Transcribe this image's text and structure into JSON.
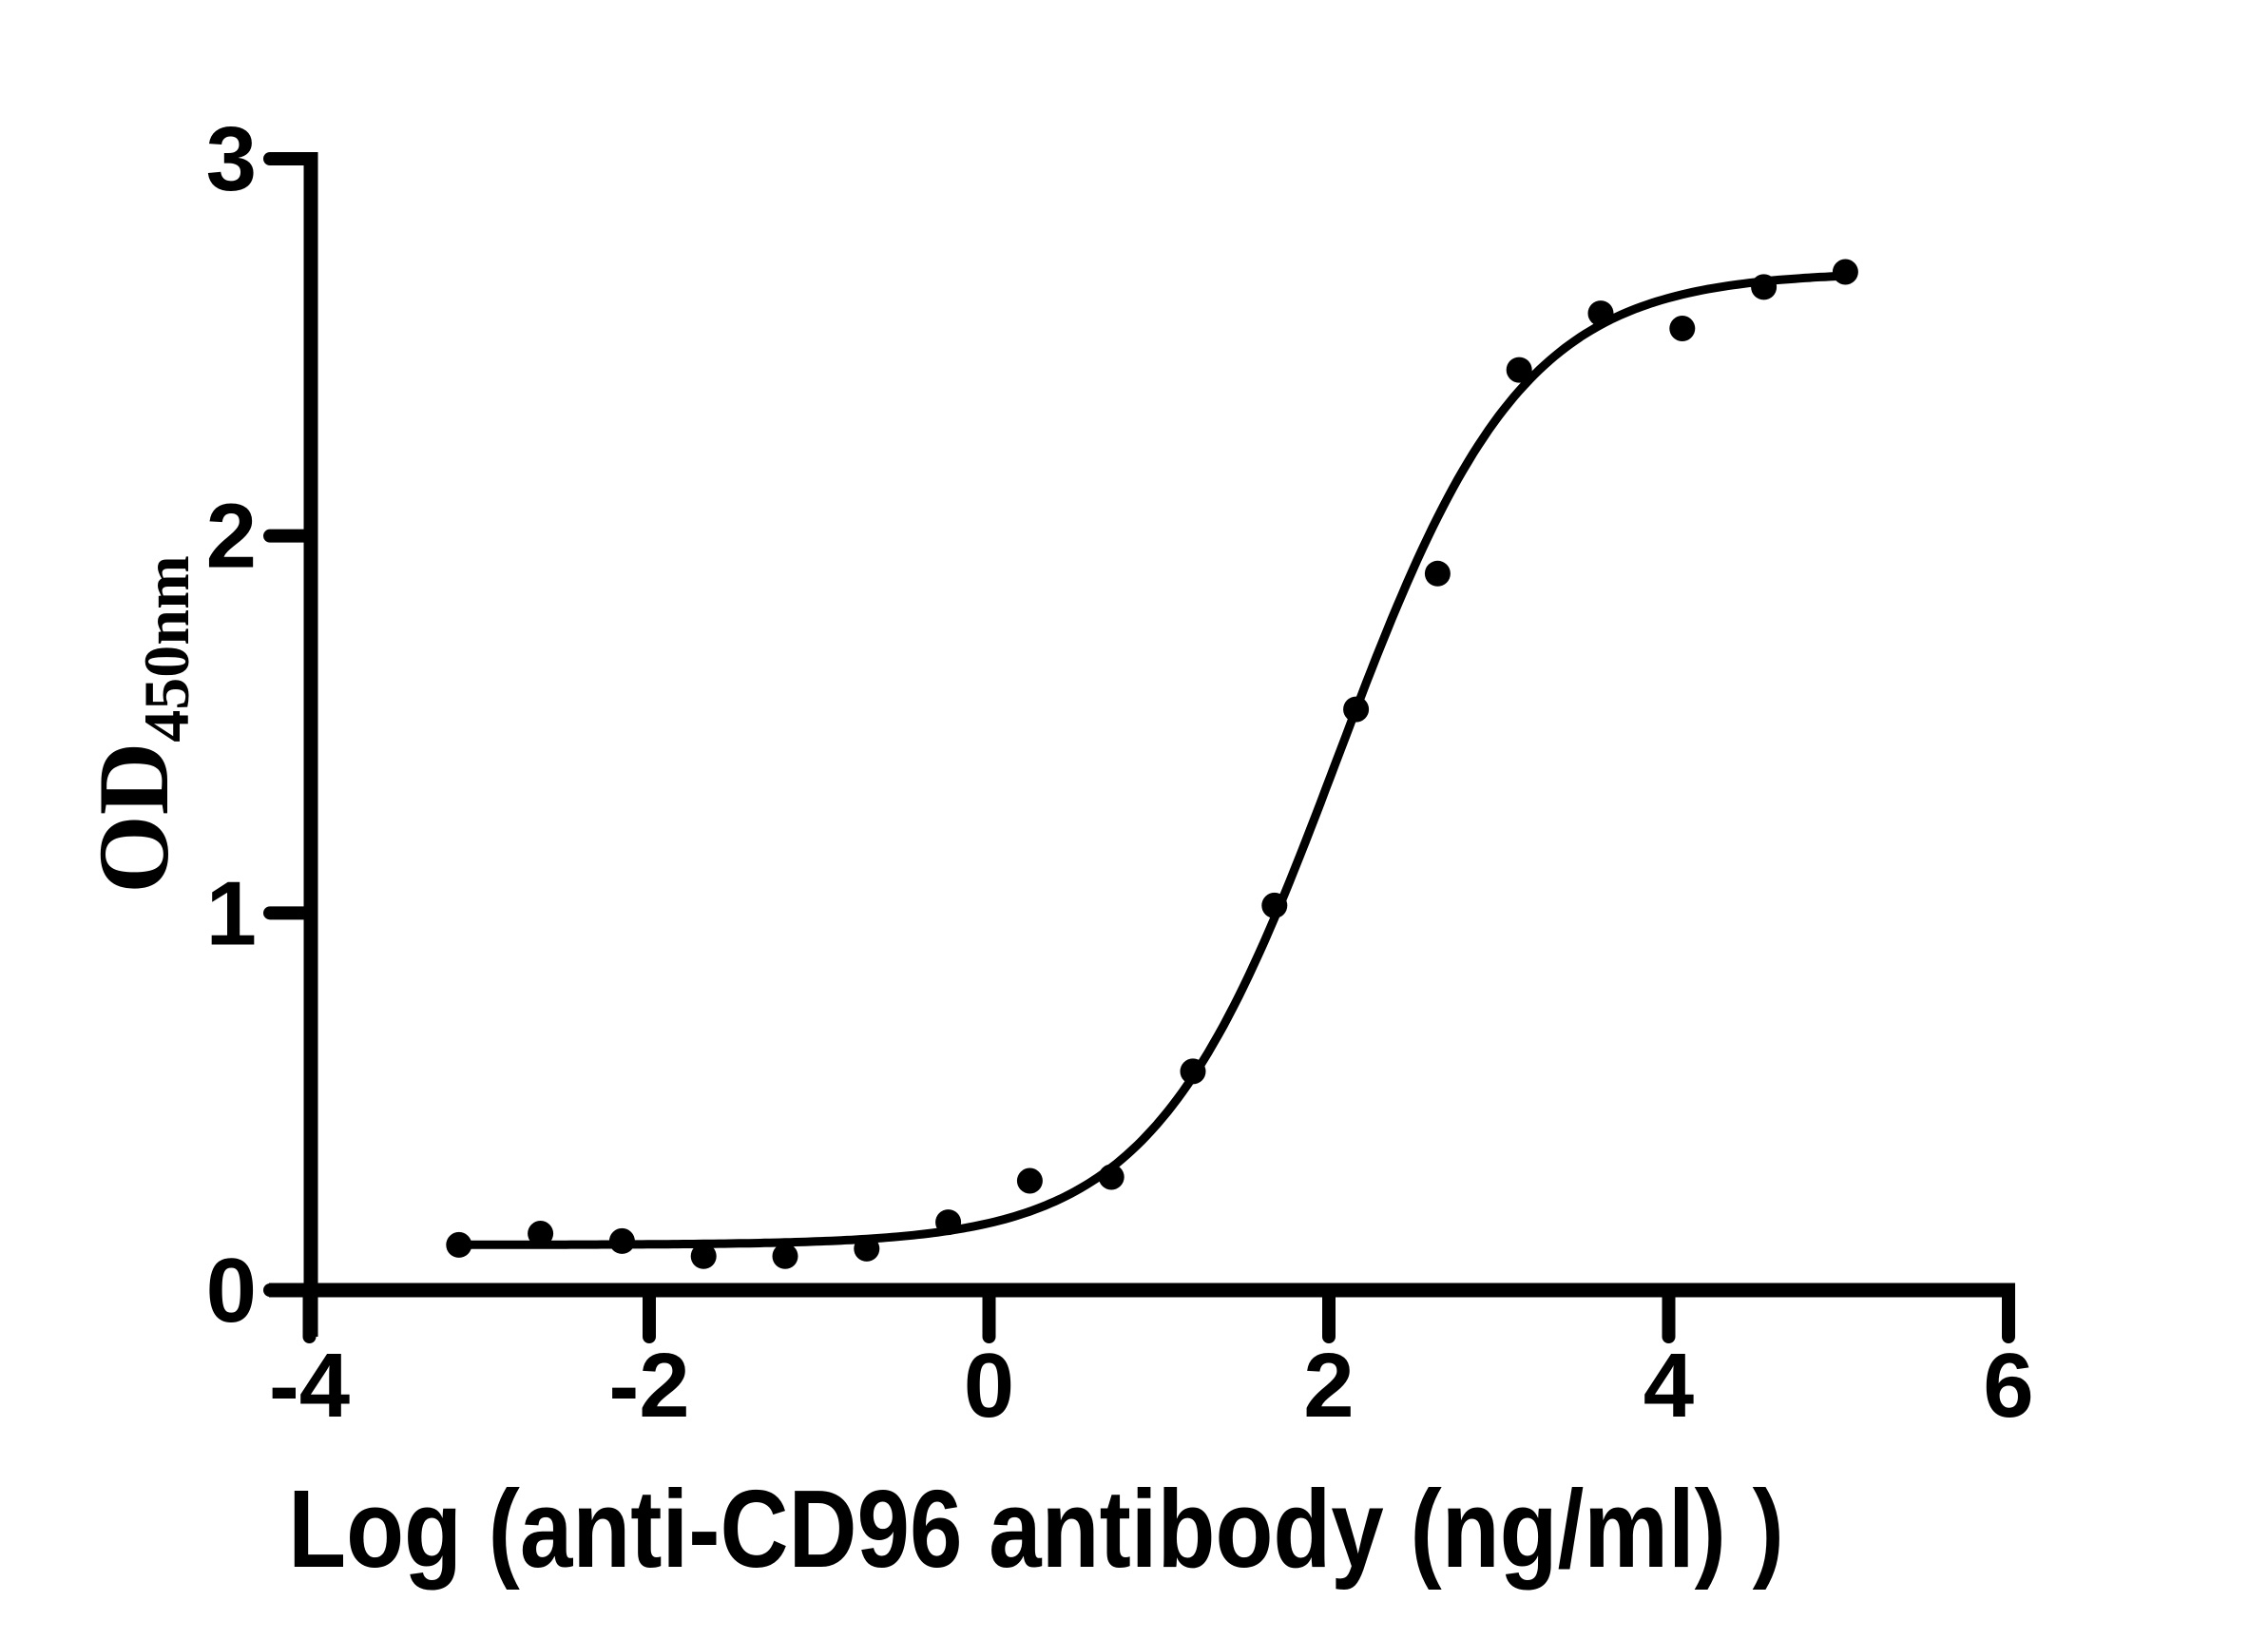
{
  "figure": {
    "background_color": "#ffffff",
    "ink_color": "#000000"
  },
  "chart_data": {
    "type": "scatter",
    "title": "",
    "xlabel": "Log (anti-CD96 antibody (ng/ml) )",
    "ylabel": "OD",
    "ylabel_subscript": "450nm",
    "xlim": [
      -4,
      6
    ],
    "ylim": [
      0,
      3
    ],
    "grid": false,
    "legend": null,
    "x_ticks": [
      {
        "value": -4,
        "label": "-4"
      },
      {
        "value": -2,
        "label": "-2"
      },
      {
        "value": 0,
        "label": "0"
      },
      {
        "value": 2,
        "label": "2"
      },
      {
        "value": 4,
        "label": "4"
      },
      {
        "value": 6,
        "label": "6"
      }
    ],
    "y_ticks": [
      {
        "value": 0,
        "label": "0"
      },
      {
        "value": 1,
        "label": "1"
      },
      {
        "value": 2,
        "label": "2"
      },
      {
        "value": 3,
        "label": "3"
      }
    ],
    "series": [
      {
        "marker": "filled-circle",
        "color": "#000000",
        "points": [
          {
            "x": -3.12,
            "y": 0.12
          },
          {
            "x": -2.64,
            "y": 0.15
          },
          {
            "x": -2.16,
            "y": 0.13
          },
          {
            "x": -1.68,
            "y": 0.09
          },
          {
            "x": -1.2,
            "y": 0.09
          },
          {
            "x": -0.72,
            "y": 0.11
          },
          {
            "x": -0.24,
            "y": 0.18
          },
          {
            "x": 0.24,
            "y": 0.29
          },
          {
            "x": 0.72,
            "y": 0.3
          },
          {
            "x": 1.2,
            "y": 0.58
          },
          {
            "x": 1.68,
            "y": 1.02
          },
          {
            "x": 2.16,
            "y": 1.54
          },
          {
            "x": 2.64,
            "y": 1.9
          },
          {
            "x": 3.12,
            "y": 2.44
          },
          {
            "x": 3.6,
            "y": 2.59
          },
          {
            "x": 4.08,
            "y": 2.55
          },
          {
            "x": 4.56,
            "y": 2.66
          },
          {
            "x": 5.04,
            "y": 2.7
          }
        ]
      }
    ],
    "fit_curve": {
      "model": "4PL sigmoidal dose-response",
      "bottom": 0.12,
      "top": 2.7,
      "log_ec50": 2.05,
      "hill_slope": 0.8,
      "x_start": -3.12,
      "x_end": 5.04,
      "color": "#000000"
    }
  }
}
